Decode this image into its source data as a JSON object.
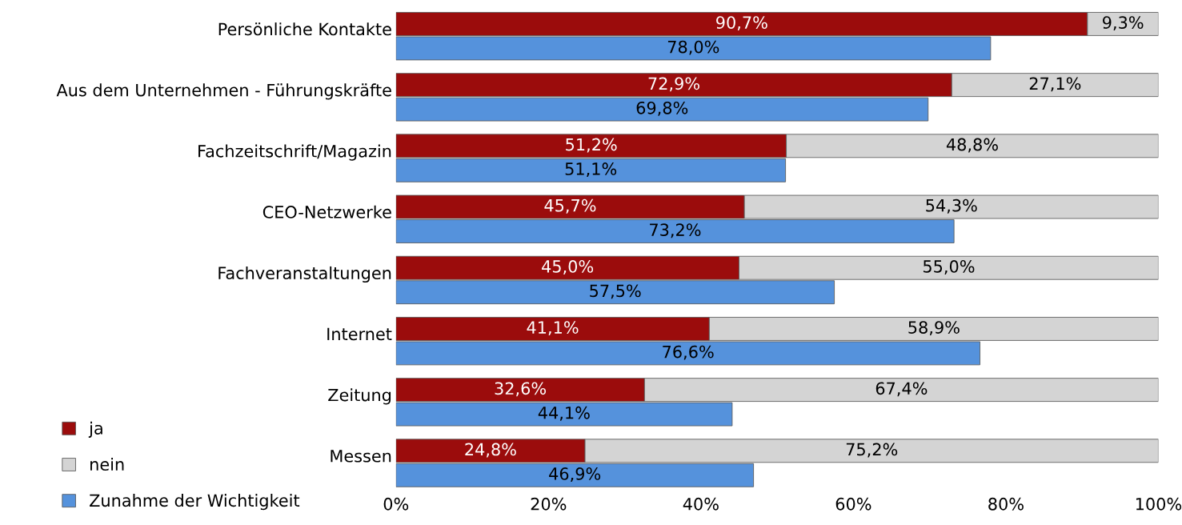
{
  "chart_data": [
    {
      "type": "bar",
      "orientation": "horizontal",
      "stacked": true,
      "categories": [
        "Persönliche Kontakte",
        "Aus dem Unternehmen - Führungskräfte",
        "Fachzeitschrift/Magazin",
        "CEO-Netzwerke",
        "Fachveranstaltungen",
        "Internet",
        "Zeitung",
        "Messen"
      ],
      "series": [
        {
          "name": "ja",
          "color": "#9b0c0c",
          "values": [
            90.7,
            72.9,
            51.2,
            45.7,
            45.0,
            41.1,
            32.6,
            24.8
          ],
          "value_labels": [
            "90,7%",
            "72,9%",
            "51,2%",
            "45,7%",
            "45,0%",
            "41,1%",
            "32,6%",
            "24,8%"
          ]
        },
        {
          "name": "nein",
          "color": "#d4d4d4",
          "values": [
            9.3,
            27.1,
            48.8,
            54.3,
            55.0,
            58.9,
            67.4,
            75.2
          ],
          "value_labels": [
            "9,3%",
            "27,1%",
            "48,8%",
            "54,3%",
            "55,0%",
            "58,9%",
            "67,4%",
            "75,2%"
          ]
        }
      ],
      "xlim": [
        0,
        100
      ],
      "xticks": [
        {
          "value": 0,
          "label": "0%"
        },
        {
          "value": 20,
          "label": "20%"
        },
        {
          "value": 40,
          "label": "40%"
        },
        {
          "value": 60,
          "label": "60%"
        },
        {
          "value": 80,
          "label": "80%"
        },
        {
          "value": 100,
          "label": "100%"
        }
      ],
      "legend": "bottom left"
    },
    {
      "type": "bar",
      "orientation": "horizontal",
      "categories": [
        null,
        null,
        null,
        null,
        null,
        null,
        null,
        null
      ],
      "series": [
        {
          "name": "Zunahme der Wichtigkeit",
          "color": "#5592dc",
          "values": [
            78.0,
            69.8,
            51.1,
            73.2,
            57.5,
            76.6,
            44.1,
            46.9
          ],
          "value_labels": [
            "78,0%",
            "69,8%",
            "51,1%",
            "73,2%",
            "57,5%",
            "76,6%",
            "44,1%",
            "46,9%"
          ]
        }
      ],
      "xlim": [
        0,
        100
      ],
      "legend": "bottom left"
    }
  ]
}
